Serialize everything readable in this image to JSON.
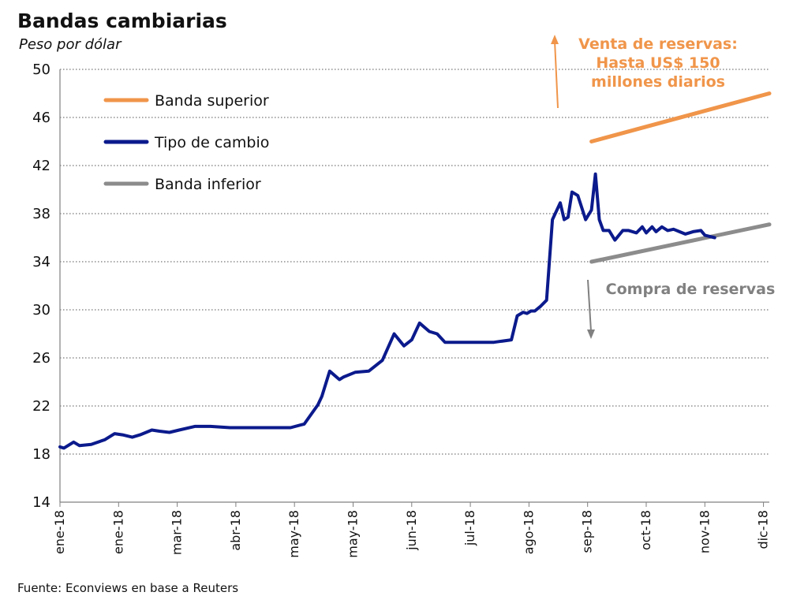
{
  "header": {
    "title": "Bandas cambiarias",
    "subtitle": "Peso por dólar"
  },
  "footer": {
    "source": "Fuente: Econviews en base a Reuters"
  },
  "colors": {
    "upper_band": "#f0954a",
    "exchange_rate": "#0b1a8c",
    "lower_band": "#8c8c8c",
    "grid": "#555555",
    "annotation_sell": "#f0954a",
    "annotation_buy": "#808080"
  },
  "chart_data": {
    "type": "line",
    "title": "Bandas cambiarias",
    "subtitle": "Peso por dólar",
    "xlabel": "",
    "ylabel": "",
    "ylim": [
      14,
      50
    ],
    "yticks": [
      14,
      18,
      22,
      26,
      30,
      34,
      38,
      42,
      46,
      50
    ],
    "xlim": [
      "2018-01-02",
      "2018-12-31"
    ],
    "x_tick_labels": [
      "ene-18",
      "ene-18",
      "mar-18",
      "abr-18",
      "may-18",
      "may-18",
      "jun-18",
      "jul-18",
      "ago-18",
      "sep-18",
      "oct-18",
      "nov-18",
      "dic-18"
    ],
    "x_tick_dates": [
      "2018-01-02",
      "2018-02-01",
      "2018-03-03",
      "2018-04-02",
      "2018-05-02",
      "2018-06-01",
      "2018-07-01",
      "2018-07-31",
      "2018-08-30",
      "2018-09-29",
      "2018-10-29",
      "2018-11-28",
      "2018-12-28"
    ],
    "grid": "horizontal dotted",
    "legend": {
      "placement": "top-left",
      "items": [
        "Banda superior",
        "Tipo de cambio",
        "Banda inferior"
      ]
    },
    "series": [
      {
        "name": "Banda superior",
        "color": "#f0954a",
        "x": [
          "2018-10-01",
          "2018-12-31"
        ],
        "values": [
          44.0,
          48.0
        ]
      },
      {
        "name": "Tipo de cambio",
        "color": "#0b1a8c",
        "x": [
          "2018-01-02",
          "2018-01-04",
          "2018-01-09",
          "2018-01-12",
          "2018-01-18",
          "2018-01-25",
          "2018-01-30",
          "2018-02-03",
          "2018-02-08",
          "2018-02-12",
          "2018-02-18",
          "2018-02-22",
          "2018-02-27",
          "2018-03-04",
          "2018-03-12",
          "2018-03-20",
          "2018-03-30",
          "2018-04-08",
          "2018-04-20",
          "2018-04-30",
          "2018-05-07",
          "2018-05-14",
          "2018-05-16",
          "2018-05-20",
          "2018-05-25",
          "2018-05-27",
          "2018-06-02",
          "2018-06-09",
          "2018-06-16",
          "2018-06-22",
          "2018-06-27",
          "2018-07-01",
          "2018-07-05",
          "2018-07-10",
          "2018-07-14",
          "2018-07-18",
          "2018-07-22",
          "2018-07-29",
          "2018-08-05",
          "2018-08-12",
          "2018-08-21",
          "2018-08-24",
          "2018-08-27",
          "2018-08-29",
          "2018-08-31",
          "2018-09-02",
          "2018-09-05",
          "2018-09-08",
          "2018-09-11",
          "2018-09-15",
          "2018-09-17",
          "2018-09-19",
          "2018-09-21",
          "2018-09-24",
          "2018-09-28",
          "2018-10-01",
          "2018-10-03",
          "2018-10-05",
          "2018-10-07",
          "2018-10-10",
          "2018-10-13",
          "2018-10-17",
          "2018-10-20",
          "2018-10-24",
          "2018-10-27",
          "2018-10-29",
          "2018-11-01",
          "2018-11-03",
          "2018-11-06",
          "2018-11-09",
          "2018-11-12",
          "2018-11-15",
          "2018-11-18",
          "2018-11-22",
          "2018-11-26",
          "2018-11-28",
          "2018-12-03"
        ],
        "values": [
          18.6,
          18.5,
          19.0,
          18.7,
          18.8,
          19.2,
          19.7,
          19.6,
          19.4,
          19.6,
          20.0,
          19.9,
          19.8,
          20.0,
          20.3,
          20.3,
          20.2,
          20.2,
          20.2,
          20.2,
          20.5,
          22.1,
          22.8,
          24.9,
          24.2,
          24.4,
          24.8,
          24.9,
          25.8,
          28.0,
          27.0,
          27.5,
          28.9,
          28.2,
          28.0,
          27.3,
          27.3,
          27.3,
          27.3,
          27.3,
          27.5,
          29.5,
          29.8,
          29.7,
          29.9,
          29.9,
          30.3,
          30.8,
          37.5,
          38.9,
          37.5,
          37.7,
          39.8,
          39.5,
          37.5,
          38.3,
          41.3,
          37.5,
          36.6,
          36.6,
          35.8,
          36.6,
          36.6,
          36.4,
          36.9,
          36.4,
          36.9,
          36.5,
          36.9,
          36.6,
          36.7,
          36.5,
          36.3,
          36.5,
          36.6,
          36.2,
          36.0
        ],
        "x_dates_are_approximate": true
      },
      {
        "name": "Banda inferior",
        "color": "#8c8c8c",
        "x": [
          "2018-10-01",
          "2018-12-31"
        ],
        "values": [
          34.0,
          37.1
        ]
      }
    ],
    "annotations": [
      {
        "text_lines": [
          "Venta de reservas:",
          "Hasta US$ 150",
          "millones diarios"
        ],
        "color": "#f0954a",
        "arrow": "up"
      },
      {
        "text_lines": [
          "Compra de reservas"
        ],
        "color": "#808080",
        "arrow": "down"
      }
    ]
  }
}
